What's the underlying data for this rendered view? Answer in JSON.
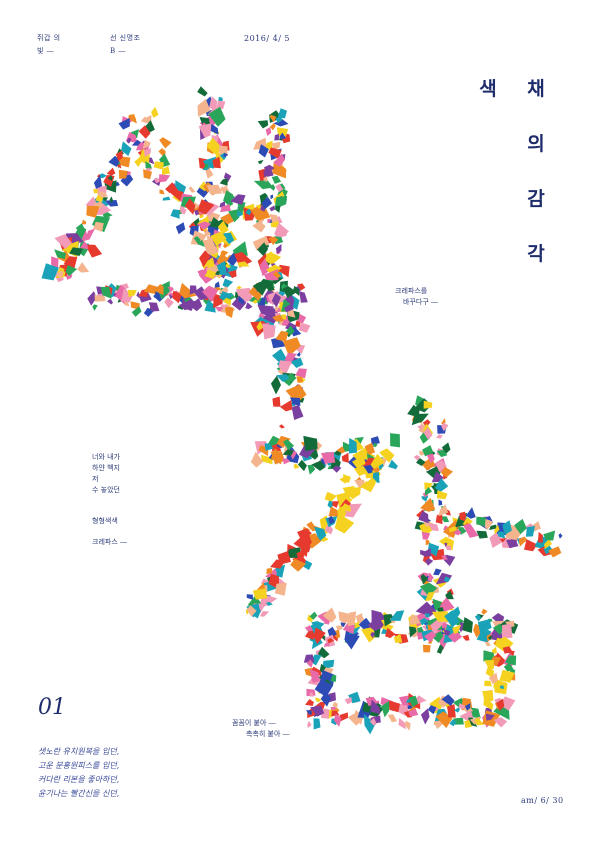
{
  "header": {
    "meta_a1": "쥐갑 의",
    "meta_a2": "빛 ―",
    "meta_b1": "선 신명조",
    "meta_b2": "B ―",
    "date": "2016/ 4/ 5"
  },
  "title_vertical": {
    "col1": [
      "색"
    ],
    "col2": [
      "채",
      "의",
      "감",
      "각"
    ]
  },
  "notes": {
    "crayon_1": "크레파스를",
    "crayon_2": "바꾸다구 ―",
    "friend_1": "너와 내가",
    "friend_2": "하얀 백지",
    "friend_3": "저",
    "friend_4": "수 놓았던",
    "color_1": "형형색색",
    "color_2": "크레파스 ―",
    "tight_1": "꼼꼼이 붙아 ―",
    "tight_2": "촉촉히 붙아 ―"
  },
  "number": "01",
  "poem": [
    "샛노란 유치원복을 입던,",
    "고운 분홍원피스를 입던,",
    "커다란 리본을 좋아하던,",
    "윤기나는 빨간신을 신던,"
  ],
  "footer_date": "am/ 6/ 30",
  "colors": {
    "text": "#2b3a78",
    "palette": [
      "#e63a2e",
      "#f4d21f",
      "#2aa65a",
      "#2c4bb5",
      "#f08a24",
      "#e96aa8",
      "#7b3fa0",
      "#f4b58e",
      "#1aa3b8",
      "#146b3a",
      "#f29bb8",
      "#ffffff"
    ]
  }
}
